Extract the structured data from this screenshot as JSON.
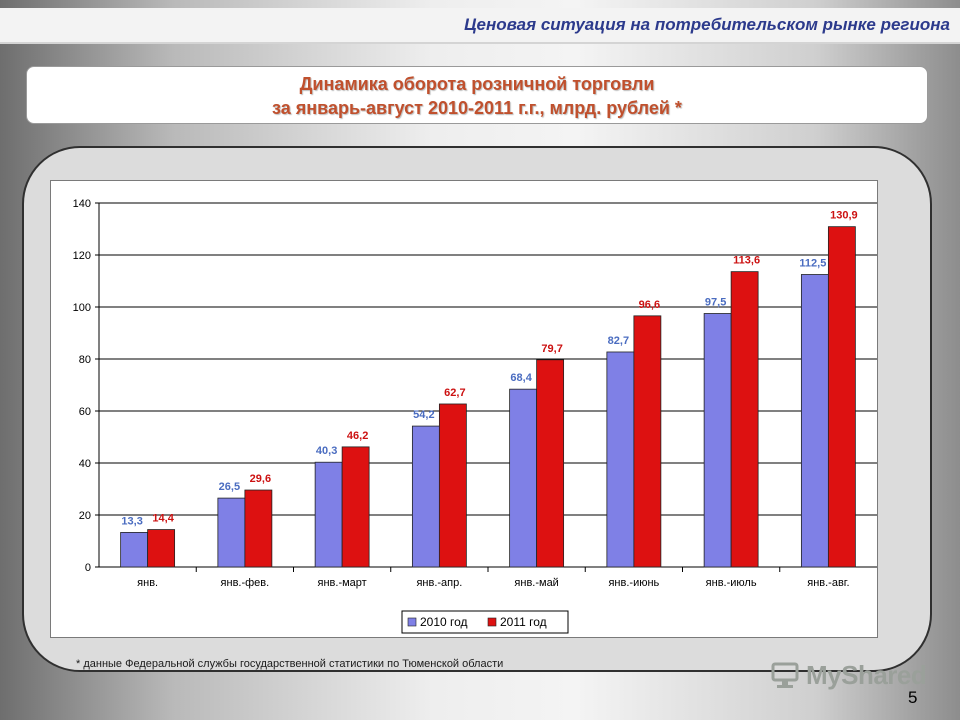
{
  "header": {
    "title": "Ценовая ситуация на потребительском рынке региона"
  },
  "title_box": {
    "line1": "Динамика оборота розничной торговли",
    "line2": "за январь-август 2010-2011 г.г., млрд. рублей *"
  },
  "footnote": "* данные Федеральной службы государственной статистики по Тюменской области",
  "watermark": {
    "text": "MyShared"
  },
  "page_number": "5",
  "colors": {
    "series_2010": "#7f80e6",
    "series_2011": "#dd1111",
    "label_2010": "#4a6cc0",
    "label_2011": "#cc1111"
  },
  "chart_data": {
    "type": "bar",
    "categories": [
      "янв.",
      "янв.-фев.",
      "янв.-март",
      "янв.-апр.",
      "янв.-май",
      "янв.-июнь",
      "янв.-июль",
      "янв.-авг."
    ],
    "series": [
      {
        "name": "2010 год",
        "values": [
          13.3,
          26.5,
          40.3,
          54.2,
          68.4,
          82.7,
          97.5,
          112.5
        ],
        "labels": [
          "13,3",
          "26,5",
          "40,3",
          "54,2",
          "68,4",
          "82,7",
          "97,5",
          "112,5"
        ]
      },
      {
        "name": "2011 год",
        "values": [
          14.4,
          29.6,
          46.2,
          62.7,
          79.7,
          96.6,
          113.6,
          130.9
        ],
        "labels": [
          "14,4",
          "29,6",
          "46,2",
          "62,7",
          "79,7",
          "96,6",
          "113,6",
          "130,9"
        ]
      }
    ],
    "ylim": [
      0,
      140
    ],
    "yticks": [
      0,
      20,
      40,
      60,
      80,
      100,
      120,
      140
    ],
    "ytick_labels": [
      "0",
      "20",
      "40",
      "60",
      "80",
      "100",
      "120",
      "140"
    ],
    "grid": true,
    "legend": "bottom-center",
    "xlabel": "",
    "ylabel": ""
  }
}
